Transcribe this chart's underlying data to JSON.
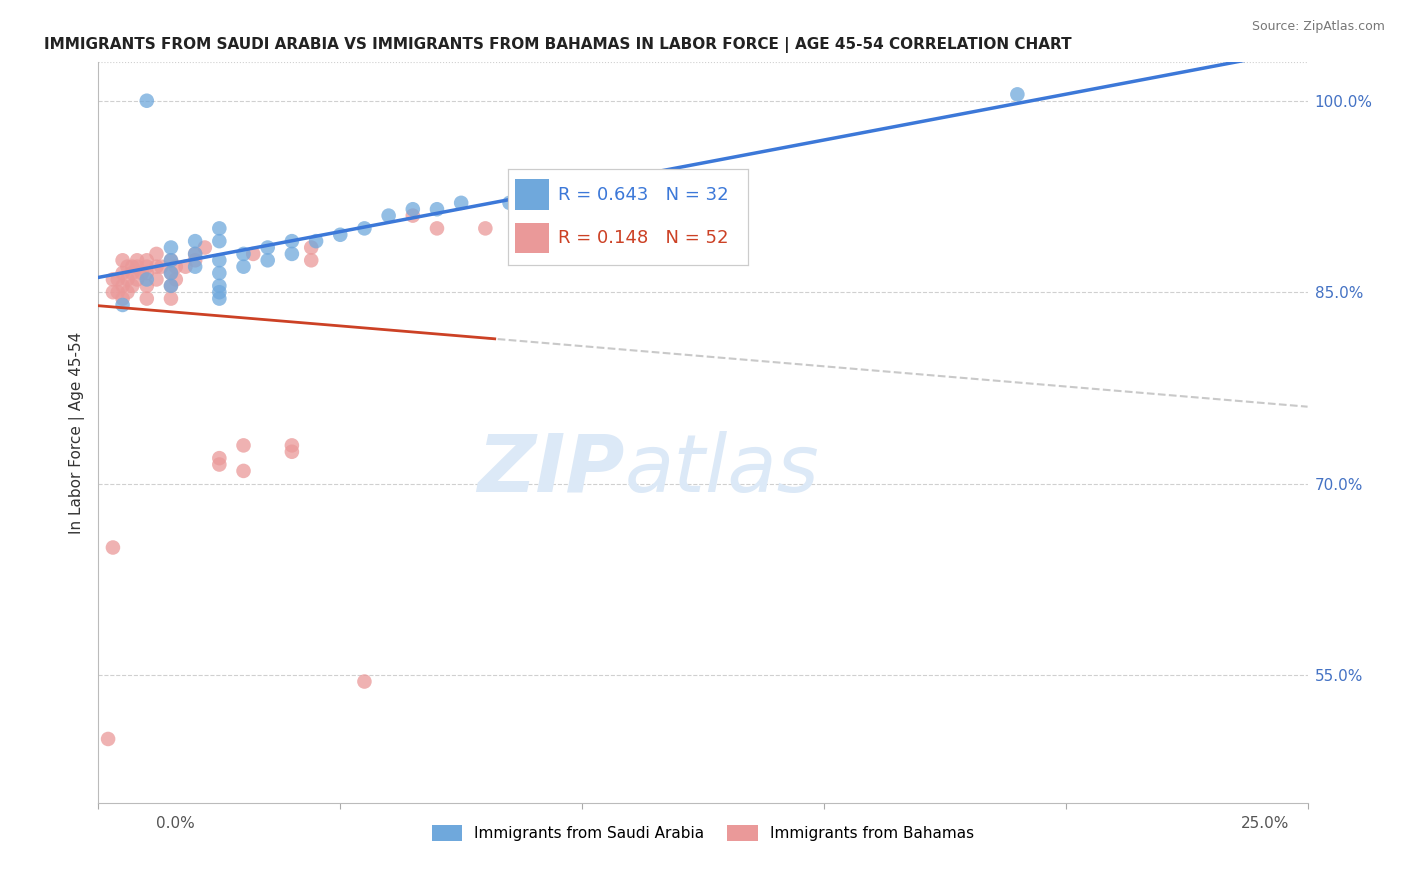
{
  "title": "IMMIGRANTS FROM SAUDI ARABIA VS IMMIGRANTS FROM BAHAMAS IN LABOR FORCE | AGE 45-54 CORRELATION CHART",
  "source": "Source: ZipAtlas.com",
  "ylabel": "In Labor Force | Age 45-54",
  "xmin": 0.0,
  "xmax": 0.25,
  "ymin": 45.0,
  "ymax": 103.0,
  "saudi_R": 0.643,
  "saudi_N": 32,
  "bahamas_R": 0.148,
  "bahamas_N": 52,
  "saudi_color": "#6fa8dc",
  "bahamas_color": "#ea9999",
  "saudi_line_color": "#3c78d8",
  "bahamas_line_color": "#cc4125",
  "dashed_line_color": "#c9c9c9",
  "legend_text_color_saudi": "#3c78d8",
  "legend_text_color_bahamas": "#cc4125",
  "background_color": "#ffffff",
  "grid_color": "#d0d0d0",
  "ytick_vals": [
    55.0,
    70.0,
    85.0,
    100.0
  ],
  "ytick_labels": [
    "55.0%",
    "70.0%",
    "85.0%",
    "100.0%"
  ],
  "saudi_x": [
    0.005,
    0.01,
    0.01,
    0.015,
    0.015,
    0.015,
    0.015,
    0.02,
    0.02,
    0.02,
    0.025,
    0.025,
    0.025,
    0.025,
    0.025,
    0.025,
    0.025,
    0.03,
    0.03,
    0.035,
    0.035,
    0.04,
    0.04,
    0.045,
    0.05,
    0.055,
    0.06,
    0.065,
    0.07,
    0.075,
    0.085,
    0.19
  ],
  "saudi_y": [
    84.0,
    100.0,
    86.0,
    88.5,
    87.5,
    86.5,
    85.5,
    89.0,
    88.0,
    87.0,
    90.0,
    89.0,
    87.5,
    86.5,
    85.5,
    85.0,
    84.5,
    88.0,
    87.0,
    88.5,
    87.5,
    89.0,
    88.0,
    89.0,
    89.5,
    90.0,
    91.0,
    91.5,
    91.5,
    92.0,
    92.0,
    100.5
  ],
  "bahamas_x": [
    0.002,
    0.003,
    0.003,
    0.003,
    0.004,
    0.004,
    0.005,
    0.005,
    0.005,
    0.005,
    0.006,
    0.006,
    0.006,
    0.007,
    0.007,
    0.007,
    0.008,
    0.008,
    0.008,
    0.009,
    0.01,
    0.01,
    0.01,
    0.01,
    0.01,
    0.012,
    0.012,
    0.012,
    0.013,
    0.015,
    0.015,
    0.015,
    0.015,
    0.016,
    0.016,
    0.018,
    0.02,
    0.02,
    0.022,
    0.025,
    0.025,
    0.03,
    0.03,
    0.032,
    0.04,
    0.04,
    0.044,
    0.044,
    0.055,
    0.065,
    0.07,
    0.08
  ],
  "bahamas_y": [
    50.0,
    65.0,
    86.0,
    85.0,
    86.0,
    85.0,
    87.5,
    86.5,
    85.5,
    84.5,
    87.0,
    86.0,
    85.0,
    87.0,
    86.5,
    85.5,
    87.5,
    87.0,
    86.0,
    86.5,
    87.5,
    87.0,
    86.5,
    85.5,
    84.5,
    88.0,
    87.0,
    86.0,
    87.0,
    87.5,
    86.5,
    85.5,
    84.5,
    87.0,
    86.0,
    87.0,
    88.0,
    87.5,
    88.5,
    72.0,
    71.5,
    73.0,
    71.0,
    88.0,
    73.0,
    72.5,
    88.5,
    87.5,
    54.5,
    91.0,
    90.0,
    90.0
  ],
  "watermark_zip": "ZIP",
  "watermark_atlas": "atlas",
  "watermark_color": "#dce9f7"
}
